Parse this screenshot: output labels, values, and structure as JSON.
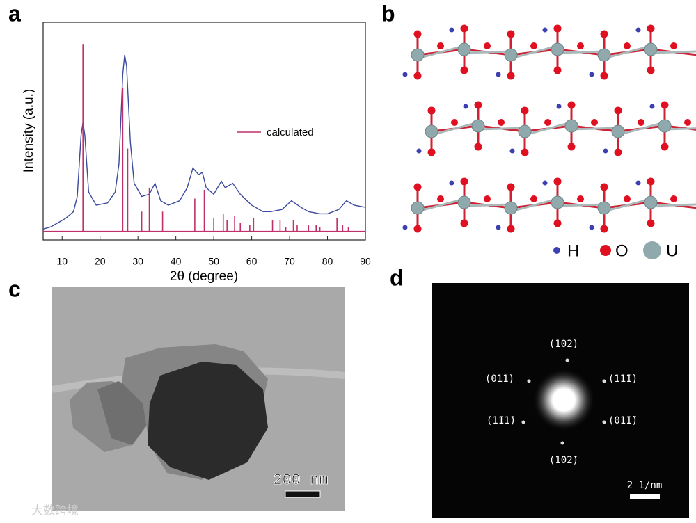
{
  "panels": {
    "a": "a",
    "b": "b",
    "c": "c",
    "d": "d"
  },
  "chart_data": {
    "type": "line",
    "x_label": "2θ (degree)",
    "y_label": "Intensity (a.u.)",
    "xlim": [
      5,
      90
    ],
    "xticks": [
      10,
      20,
      30,
      40,
      50,
      60,
      70,
      80,
      90
    ],
    "ylim": [
      -4,
      96
    ],
    "legend": "right",
    "series": [
      {
        "color": "#3b4a9c",
        "x": [
          5,
          7,
          9,
          11,
          13,
          14,
          15,
          15.5,
          16,
          17,
          19,
          22,
          24,
          25,
          26,
          26.5,
          27,
          28,
          29,
          31,
          33,
          34.5,
          36,
          38,
          41,
          43,
          44.5,
          46,
          47,
          48,
          50,
          52,
          53,
          55,
          57,
          60,
          63,
          65,
          68,
          70.5,
          73,
          75,
          78,
          80,
          83,
          85,
          87,
          90
        ],
        "values": [
          1,
          2,
          4,
          6,
          9,
          16,
          44,
          50,
          44,
          18,
          12,
          13,
          18,
          31,
          72,
          81,
          76,
          41,
          22,
          16,
          17,
          22,
          14,
          12,
          14,
          20,
          29,
          26,
          27,
          20,
          17,
          23,
          20,
          22,
          17,
          12,
          9,
          9,
          10,
          14,
          11,
          9,
          8,
          8,
          10,
          14,
          12,
          11
        ]
      },
      {
        "name": "calculated",
        "color": "#c0306a",
        "style": "stem",
        "x": [
          15.5,
          26,
          27.3,
          31,
          33,
          36.5,
          45,
          47.5,
          50,
          52.5,
          53.5,
          55.5,
          57,
          59.5,
          60.5,
          65.5,
          67.5,
          69,
          71,
          72,
          75,
          77,
          78,
          82.5,
          84,
          85.5
        ],
        "values": [
          86,
          66,
          38,
          9,
          20,
          9,
          15,
          19,
          6,
          8,
          5,
          7,
          4,
          3,
          6,
          5,
          5,
          2,
          5,
          3,
          3,
          3,
          2,
          6,
          3,
          2
        ]
      }
    ]
  },
  "structure_legend": {
    "h": "H",
    "o": "O",
    "u": "U"
  },
  "tem": {
    "scale_bar": "200 nm"
  },
  "diffraction": {
    "spots": [
      "(102)",
      "(011)",
      "(11̄1)",
      "(1̄11̄)",
      "(01̄1̄)",
      "(1̄02̄)"
    ],
    "scale_bar": "2 1/nm"
  },
  "watermark": "大数跨境"
}
